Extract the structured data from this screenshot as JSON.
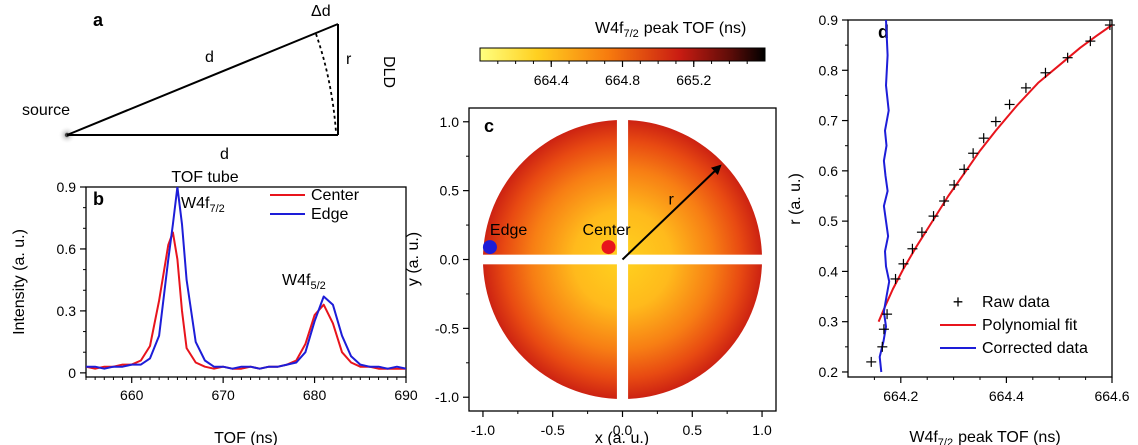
{
  "colors": {
    "center": "#e8141c",
    "edge": "#1d1dd8",
    "black": "#000000",
    "heatmap_low": "#ffff80",
    "heatmap_high": "#000000"
  },
  "chart_data": [
    {
      "panel": "a",
      "type": "diagram",
      "labels": {
        "source": "source",
        "d_top": "d",
        "d_bottom": "d",
        "delta_d": "Δd",
        "r": "r",
        "detector": "DLD",
        "tube": "TOF tube"
      }
    },
    {
      "panel": "b",
      "type": "line",
      "xlabel": "TOF (ns)",
      "ylabel": "Intensity (a. u.)",
      "xlim": [
        655,
        690
      ],
      "ylim": [
        -0.02,
        0.9
      ],
      "xticks": [
        "660",
        "670",
        "680",
        "690"
      ],
      "yticks": [
        "0",
        "0.3",
        "0.6",
        "0.9"
      ],
      "legend_position": "top-right",
      "annotations": {
        "peak1": {
          "base": "W4f",
          "sub": "7/2"
        },
        "peak2": {
          "base": "W4f",
          "sub": "5/2"
        }
      },
      "series": [
        {
          "name": "Center",
          "color": "#e8141c",
          "x": [
            655,
            656,
            657,
            658,
            659,
            660,
            661,
            662,
            663,
            664,
            664.5,
            665,
            665.5,
            666,
            667,
            668,
            669,
            670,
            671,
            672,
            673,
            674,
            675,
            676,
            677,
            678,
            679,
            680,
            681,
            682,
            683,
            684,
            685,
            686,
            687,
            688,
            689,
            690
          ],
          "y": [
            0.03,
            0.02,
            0.03,
            0.03,
            0.04,
            0.04,
            0.06,
            0.13,
            0.35,
            0.62,
            0.68,
            0.55,
            0.3,
            0.12,
            0.05,
            0.03,
            0.02,
            0.03,
            0.02,
            0.02,
            0.03,
            0.02,
            0.03,
            0.03,
            0.04,
            0.06,
            0.14,
            0.28,
            0.33,
            0.24,
            0.1,
            0.05,
            0.03,
            0.03,
            0.02,
            0.02,
            0.02,
            0.02
          ]
        },
        {
          "name": "Edge",
          "color": "#1d1dd8",
          "x": [
            655,
            656,
            657,
            658,
            659,
            660,
            661,
            662,
            663,
            664,
            664.5,
            665,
            665.5,
            666,
            667,
            668,
            669,
            670,
            671,
            672,
            673,
            674,
            675,
            676,
            677,
            678,
            679,
            680,
            681,
            682,
            683,
            684,
            685,
            686,
            687,
            688,
            689,
            690
          ],
          "y": [
            0.03,
            0.03,
            0.02,
            0.03,
            0.03,
            0.04,
            0.04,
            0.07,
            0.18,
            0.55,
            0.72,
            0.9,
            0.72,
            0.45,
            0.15,
            0.06,
            0.03,
            0.03,
            0.02,
            0.03,
            0.03,
            0.02,
            0.03,
            0.03,
            0.04,
            0.05,
            0.1,
            0.25,
            0.37,
            0.33,
            0.18,
            0.08,
            0.04,
            0.03,
            0.03,
            0.02,
            0.03,
            0.02
          ]
        }
      ]
    },
    {
      "panel": "c",
      "type": "heatmap",
      "colorbar_title": {
        "base": "W4f",
        "sub": "7/2",
        "rest": "peak TOF (ns)"
      },
      "colorbar_range": [
        664.0,
        665.6
      ],
      "colorbar_ticks": [
        "664.4",
        "664.8",
        "665.2"
      ],
      "xlabel": "x (a. u.)",
      "ylabel": "y (a. u.)",
      "xlim": [
        -1.1,
        1.1
      ],
      "ylim": [
        -1.1,
        1.1
      ],
      "xticks": [
        "-1.0",
        "-0.5",
        "0.0",
        "0.5",
        "1.0"
      ],
      "yticks": [
        "-1.0",
        "-0.5",
        "0.0",
        "0.5",
        "1.0"
      ],
      "markers": [
        {
          "label": "Edge",
          "x": -0.95,
          "y": 0.09,
          "color": "#1d1dd8"
        },
        {
          "label": "Center",
          "x": -0.1,
          "y": 0.09,
          "color": "#e8141c"
        }
      ],
      "arrow_label": "r",
      "arrow": {
        "from": [
          0,
          0
        ],
        "to": [
          0.7,
          0.68
        ]
      }
    },
    {
      "panel": "d",
      "type": "scatter",
      "xlabel": {
        "base": "W4f",
        "sub": "7/2",
        "rest": "peak TOF (ns)"
      },
      "ylabel": "r (a. u.)",
      "xlim": [
        664.1,
        664.6
      ],
      "ylim": [
        0.19,
        0.9
      ],
      "xticks": [
        "664.2",
        "664.4",
        "664.6"
      ],
      "yticks": [
        "0.2",
        "0.3",
        "0.4",
        "0.5",
        "0.6",
        "0.7",
        "0.8",
        "0.9"
      ],
      "legend_position": "bottom-right",
      "series": [
        {
          "name": "Raw data",
          "color": "#000000",
          "marker": "+",
          "x": [
            664.144,
            664.165,
            664.168,
            664.174,
            664.19,
            664.205,
            664.222,
            664.24,
            664.262,
            664.282,
            664.301,
            664.32,
            664.337,
            664.357,
            664.38,
            664.406,
            664.437,
            664.474,
            664.516,
            664.559,
            664.596
          ],
          "y": [
            0.22,
            0.25,
            0.285,
            0.315,
            0.385,
            0.415,
            0.445,
            0.478,
            0.51,
            0.54,
            0.572,
            0.603,
            0.635,
            0.665,
            0.698,
            0.732,
            0.765,
            0.795,
            0.825,
            0.858,
            0.89
          ]
        },
        {
          "name": "Polynomial fit",
          "color": "#e8141c",
          "line": true,
          "x": [
            664.158,
            664.17,
            664.185,
            664.205,
            664.23,
            664.26,
            664.29,
            664.32,
            664.35,
            664.38,
            664.42,
            664.46,
            664.5,
            664.54,
            664.57,
            664.6
          ],
          "y": [
            0.3,
            0.33,
            0.365,
            0.405,
            0.45,
            0.5,
            0.55,
            0.595,
            0.64,
            0.68,
            0.73,
            0.775,
            0.81,
            0.845,
            0.868,
            0.89
          ]
        },
        {
          "name": "Corrected data",
          "color": "#1d1dd8",
          "line": true,
          "x": [
            664.163,
            664.16,
            664.167,
            664.172,
            664.168,
            664.173,
            664.178,
            664.172,
            664.17,
            664.176,
            664.172,
            664.168,
            664.175,
            664.171,
            664.168,
            664.173,
            664.17,
            664.177,
            664.172,
            664.175,
            664.172
          ],
          "y": [
            0.2,
            0.23,
            0.26,
            0.29,
            0.32,
            0.35,
            0.38,
            0.41,
            0.44,
            0.47,
            0.5,
            0.53,
            0.56,
            0.59,
            0.62,
            0.65,
            0.68,
            0.72,
            0.77,
            0.83,
            0.9
          ]
        }
      ]
    }
  ]
}
